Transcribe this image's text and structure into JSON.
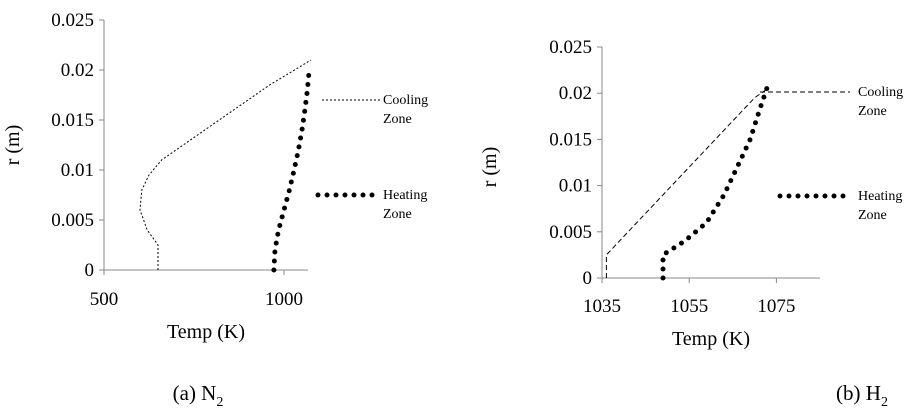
{
  "chart_data": [
    {
      "type": "line",
      "xlabel": "Temp (K)",
      "ylabel": "r (m)",
      "xlim": [
        500,
        1100
      ],
      "ylim": [
        0,
        0.025
      ],
      "xticks": [
        "500",
        "1000"
      ],
      "yticks": [
        "0",
        "0.005",
        "0.01",
        "0.015",
        "0.02",
        "0.025"
      ],
      "caption": {
        "prefix": "(a)  N",
        "sub": "2"
      },
      "grid": false,
      "legend": "right",
      "series": [
        {
          "name": "Cooling Zone",
          "line_style": "dashed-thin",
          "points": [
            [
              650,
              0
            ],
            [
              650,
              0.0025
            ],
            [
              620,
              0.004
            ],
            [
              600,
              0.006
            ],
            [
              605,
              0.008
            ],
            [
              625,
              0.0095
            ],
            [
              660,
              0.011
            ],
            [
              720,
              0.0125
            ],
            [
              800,
              0.0145
            ],
            [
              880,
              0.0165
            ],
            [
              960,
              0.0185
            ],
            [
              1020,
              0.0198
            ],
            [
              1075,
              0.021
            ]
          ]
        },
        {
          "name": "Heating Zone",
          "line_style": "dotted-heavy",
          "points": [
            [
              972,
              0
            ],
            [
              975,
              0.002
            ],
            [
              985,
              0.004
            ],
            [
              1000,
              0.006
            ],
            [
              1015,
              0.008
            ],
            [
              1028,
              0.01
            ],
            [
              1040,
              0.012
            ],
            [
              1050,
              0.014
            ],
            [
              1058,
              0.016
            ],
            [
              1065,
              0.018
            ],
            [
              1070,
              0.02
            ]
          ]
        }
      ]
    },
    {
      "type": "line",
      "xlabel": "Temp (K)",
      "ylabel": "r (m)",
      "xlim": [
        1035,
        1085
      ],
      "ylim": [
        0,
        0.025
      ],
      "xticks": [
        "1035",
        "1055",
        "1075"
      ],
      "yticks": [
        "0",
        "0.005",
        "0.01",
        "0.015",
        "0.02",
        "0.025"
      ],
      "caption": {
        "prefix": "(b) H",
        "sub": "2"
      },
      "grid": false,
      "legend": "right",
      "series": [
        {
          "name": "Cooling Zone",
          "line_style": "dashed",
          "points": [
            [
              1036,
              0
            ],
            [
              1036,
              0.0025
            ],
            [
              1040,
              0.0045
            ],
            [
              1045,
              0.007
            ],
            [
              1050,
              0.0095
            ],
            [
              1055,
              0.012
            ],
            [
              1060,
              0.0145
            ],
            [
              1065,
              0.017
            ],
            [
              1070,
              0.0195
            ],
            [
              1073,
              0.0205
            ]
          ]
        },
        {
          "name": "Heating Zone",
          "line_style": "dotted-heavy",
          "points": [
            [
              1049,
              0
            ],
            [
              1049,
              0.0025
            ],
            [
              1054,
              0.004
            ],
            [
              1059,
              0.006
            ],
            [
              1063,
              0.009
            ],
            [
              1066,
              0.012
            ],
            [
              1069,
              0.015
            ],
            [
              1071,
              0.018
            ],
            [
              1073,
              0.0208
            ]
          ]
        }
      ]
    }
  ]
}
